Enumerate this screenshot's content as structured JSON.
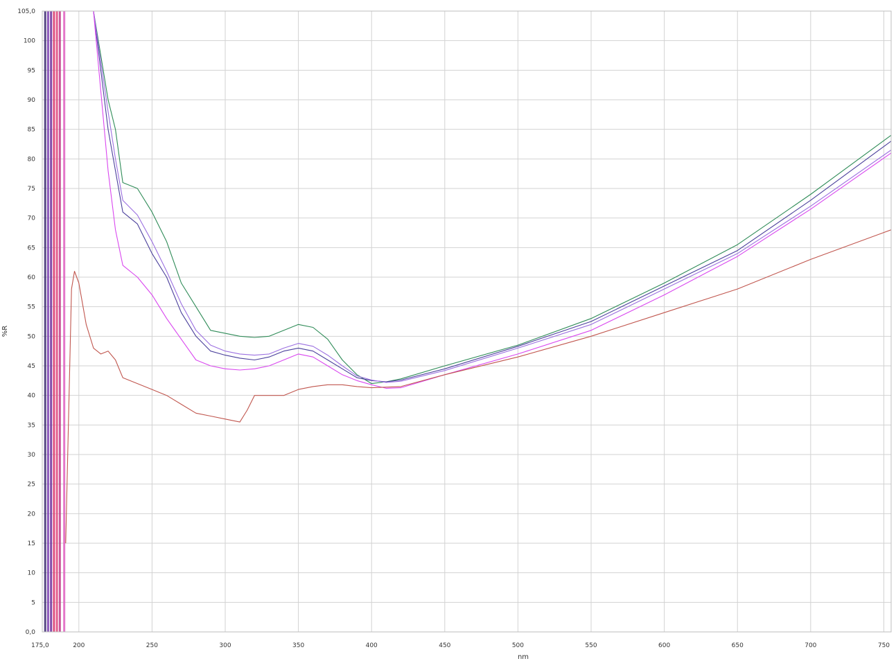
{
  "chart_data": {
    "type": "line",
    "title": "",
    "xlabel": "nm",
    "ylabel": "%R",
    "xlim": [
      175,
      755
    ],
    "ylim": [
      0,
      105
    ],
    "grid": true,
    "x_tick_labels": [
      "175,0",
      "200",
      "250",
      "300",
      "350",
      "400",
      "450",
      "500",
      "550",
      "600",
      "650",
      "700",
      "750"
    ],
    "x_tick_values": [
      175,
      200,
      250,
      300,
      350,
      400,
      450,
      500,
      550,
      600,
      650,
      700,
      750
    ],
    "y_tick_labels": [
      "0,0",
      "5",
      "10",
      "15",
      "20",
      "25",
      "30",
      "35",
      "40",
      "45",
      "50",
      "55",
      "60",
      "65",
      "70",
      "75",
      "80",
      "85",
      "90",
      "95",
      "100",
      "105,0"
    ],
    "y_tick_values": [
      0,
      5,
      10,
      15,
      20,
      25,
      30,
      35,
      40,
      45,
      50,
      55,
      60,
      65,
      70,
      75,
      80,
      85,
      90,
      95,
      100,
      105
    ],
    "series": [
      {
        "color": "#2e8b57",
        "x": [
          200,
          210,
          220,
          225,
          230,
          240,
          250,
          260,
          270,
          280,
          290,
          300,
          310,
          320,
          330,
          340,
          350,
          360,
          370,
          380,
          390,
          400,
          410,
          420,
          450,
          500,
          550,
          600,
          650,
          700,
          755
        ],
        "y": [
          105,
          105,
          90,
          85,
          76,
          75,
          71,
          66,
          59,
          55,
          51,
          50.5,
          50,
          49.8,
          50,
          51,
          52,
          51.5,
          49.5,
          46,
          43.5,
          42,
          42.3,
          42.8,
          45,
          48.5,
          53,
          59,
          65.5,
          74,
          84
        ]
      },
      {
        "color": "#4a3f9b",
        "x": [
          200,
          210,
          220,
          225,
          230,
          240,
          250,
          260,
          270,
          280,
          290,
          300,
          310,
          320,
          330,
          340,
          350,
          360,
          370,
          380,
          390,
          400,
          410,
          420,
          450,
          500,
          550,
          600,
          650,
          700,
          755
        ],
        "y": [
          105,
          105,
          85,
          78,
          71,
          69,
          64,
          60,
          54,
          50,
          47.5,
          46.8,
          46.3,
          46,
          46.5,
          47.5,
          48,
          47.5,
          46,
          44.5,
          43,
          42.5,
          42.3,
          42.6,
          44.5,
          48.3,
          52.5,
          58.5,
          64.5,
          73,
          83
        ]
      },
      {
        "color": "#9b6fe0",
        "x": [
          200,
          210,
          220,
          225,
          230,
          240,
          250,
          260,
          270,
          280,
          290,
          300,
          310,
          320,
          330,
          340,
          350,
          360,
          370,
          380,
          390,
          400,
          410,
          420,
          450,
          500,
          550,
          600,
          650,
          700,
          755
        ],
        "y": [
          105,
          105,
          88,
          80,
          73,
          70.5,
          66,
          61,
          55.5,
          51,
          48.5,
          47.5,
          47,
          46.8,
          47,
          48,
          48.8,
          48.3,
          46.8,
          45,
          43.3,
          42.6,
          42.2,
          42.4,
          44.2,
          48,
          52,
          58,
          64,
          72,
          81.5
        ]
      },
      {
        "color": "#d946ef",
        "x": [
          200,
          210,
          220,
          225,
          230,
          240,
          250,
          260,
          270,
          280,
          290,
          300,
          310,
          320,
          330,
          340,
          350,
          360,
          370,
          380,
          390,
          400,
          410,
          420,
          450,
          500,
          550,
          600,
          650,
          700,
          755
        ],
        "y": [
          105,
          105,
          78,
          68,
          62,
          60,
          57,
          53,
          49.5,
          46,
          45,
          44.5,
          44.3,
          44.5,
          45,
          46,
          47,
          46.5,
          45,
          43.5,
          42.5,
          41.8,
          41.2,
          41.3,
          43.5,
          47,
          51,
          57,
          63.5,
          71.5,
          81
        ]
      },
      {
        "color": "#c0554d",
        "x": [
          191,
          195,
          197,
          200,
          205,
          210,
          215,
          220,
          225,
          230,
          240,
          250,
          260,
          270,
          280,
          290,
          300,
          310,
          315,
          320,
          325,
          330,
          340,
          350,
          360,
          370,
          380,
          390,
          400,
          420,
          450,
          500,
          550,
          600,
          650,
          700,
          755
        ],
        "y": [
          15,
          58,
          61,
          59,
          52,
          48,
          47,
          47.5,
          46,
          43,
          42,
          41,
          40,
          38.5,
          37,
          36.5,
          36,
          35.5,
          37.5,
          40,
          40,
          40,
          40,
          41,
          41.5,
          41.8,
          41.8,
          41.5,
          41.3,
          41.5,
          43.5,
          46.5,
          50,
          54,
          58,
          63,
          68
        ]
      }
    ],
    "spikes": [
      {
        "color": "#3b2a6f",
        "x": 177,
        "y0": 0,
        "y1": 105
      },
      {
        "color": "#7a3fb0",
        "x": 179,
        "y0": 0,
        "y1": 105
      },
      {
        "color": "#6d2c9a",
        "x": 181,
        "y0": 0,
        "y1": 105
      },
      {
        "color": "#d9346b",
        "x": 183,
        "y0": 0,
        "y1": 105
      },
      {
        "color": "#e0457a",
        "x": 185,
        "y0": 0,
        "y1": 105
      },
      {
        "color": "#c13a8a",
        "x": 187,
        "y0": 0,
        "y1": 105
      },
      {
        "color": "#e060c0",
        "x": 190,
        "y0": 0,
        "y1": 105
      }
    ]
  }
}
